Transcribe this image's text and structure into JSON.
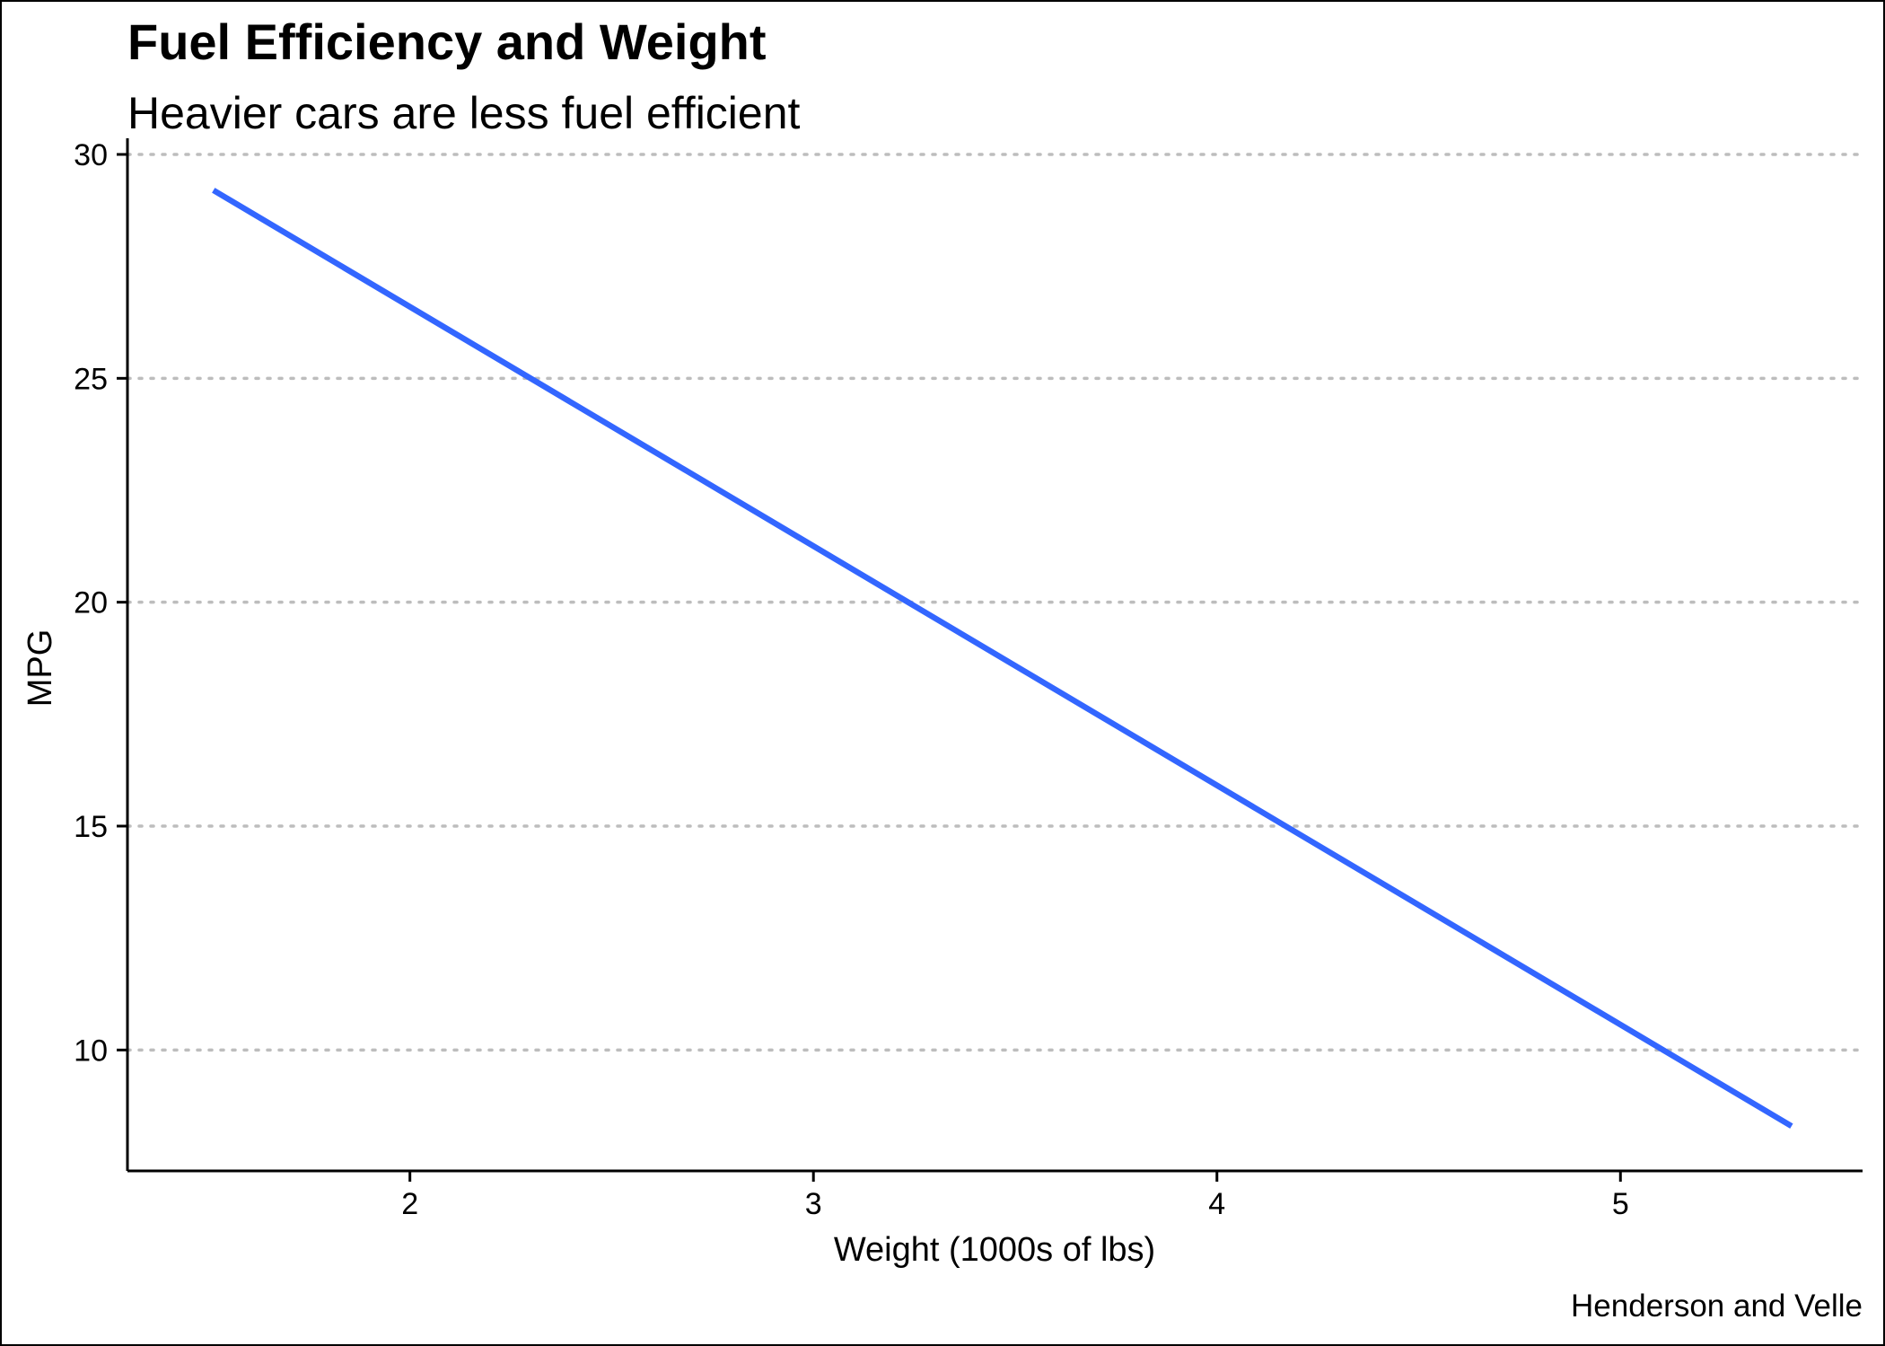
{
  "chart_data": {
    "type": "line",
    "title": "Fuel Efficiency and Weight",
    "subtitle": "Heavier cars are less fuel efficient",
    "xlabel": "Weight (1000s of lbs)",
    "ylabel": "MPG",
    "caption": "Henderson and Velle",
    "xlim": [
      1.3,
      5.6
    ],
    "ylim": [
      7.3,
      30.2
    ],
    "x_ticks": [
      2,
      3,
      4,
      5
    ],
    "y_ticks": [
      10,
      15,
      20,
      25,
      30
    ],
    "grid": {
      "horizontal": true,
      "vertical": false,
      "style": "dotted"
    },
    "series": [
      {
        "color": "#3366ff",
        "x": [
          1.513,
          5.424
        ],
        "y": [
          29.2,
          8.3
        ]
      }
    ]
  },
  "colors": {
    "line": "#3366ff",
    "grid": "#bdbdbd",
    "axis": "#000000",
    "background": "#ffffff"
  }
}
